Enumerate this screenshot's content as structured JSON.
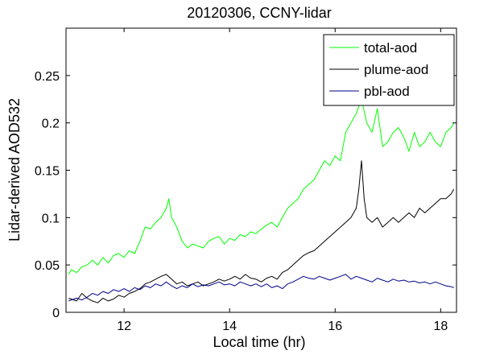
{
  "chart_data": {
    "type": "line",
    "title": "20120306, CCNY-lidar",
    "xlabel": "Local time (hr)",
    "ylabel": "Lidar-derived AOD532",
    "xlim": [
      10.9,
      18.3
    ],
    "ylim": [
      0,
      0.3
    ],
    "xticks": [
      12,
      14,
      16,
      18
    ],
    "xtick_labels": [
      "12",
      "14",
      "16",
      "18"
    ],
    "yticks": [
      0,
      0.05,
      0.1,
      0.15,
      0.2,
      0.25
    ],
    "ytick_labels": [
      "0",
      "0.05",
      "0.1",
      "0.15",
      "0.2",
      "0.25"
    ],
    "grid": false,
    "legend_position": "top-right",
    "series": [
      {
        "name": "total-aod",
        "color": "#00ff00",
        "x": [
          10.95,
          11.0,
          11.1,
          11.2,
          11.3,
          11.4,
          11.5,
          11.6,
          11.7,
          11.8,
          11.9,
          12.0,
          12.1,
          12.2,
          12.3,
          12.4,
          12.5,
          12.6,
          12.7,
          12.8,
          12.85,
          12.9,
          13.0,
          13.1,
          13.2,
          13.3,
          13.4,
          13.5,
          13.6,
          13.7,
          13.8,
          13.9,
          14.0,
          14.1,
          14.2,
          14.3,
          14.4,
          14.5,
          14.6,
          14.7,
          14.8,
          14.9,
          15.0,
          15.1,
          15.2,
          15.3,
          15.4,
          15.5,
          15.6,
          15.7,
          15.8,
          15.9,
          16.0,
          16.1,
          16.2,
          16.3,
          16.4,
          16.5,
          16.6,
          16.7,
          16.8,
          16.9,
          17.0,
          17.1,
          17.2,
          17.3,
          17.4,
          17.5,
          17.6,
          17.7,
          17.8,
          17.9,
          18.0,
          18.1,
          18.2,
          18.25
        ],
        "values": [
          0.04,
          0.045,
          0.042,
          0.048,
          0.05,
          0.055,
          0.05,
          0.058,
          0.052,
          0.06,
          0.062,
          0.058,
          0.065,
          0.062,
          0.075,
          0.09,
          0.088,
          0.095,
          0.1,
          0.11,
          0.12,
          0.1,
          0.09,
          0.075,
          0.068,
          0.072,
          0.07,
          0.068,
          0.075,
          0.078,
          0.08,
          0.072,
          0.078,
          0.076,
          0.082,
          0.08,
          0.085,
          0.083,
          0.088,
          0.092,
          0.095,
          0.09,
          0.1,
          0.11,
          0.115,
          0.12,
          0.13,
          0.135,
          0.14,
          0.15,
          0.16,
          0.155,
          0.165,
          0.16,
          0.19,
          0.2,
          0.21,
          0.225,
          0.2,
          0.19,
          0.215,
          0.175,
          0.18,
          0.19,
          0.195,
          0.185,
          0.17,
          0.19,
          0.175,
          0.18,
          0.19,
          0.18,
          0.175,
          0.19,
          0.195,
          0.2
        ]
      },
      {
        "name": "plume-aod",
        "color": "#000000",
        "x": [
          10.95,
          11.1,
          11.2,
          11.3,
          11.4,
          11.5,
          11.6,
          11.7,
          11.8,
          11.9,
          12.0,
          12.1,
          12.2,
          12.3,
          12.4,
          12.5,
          12.6,
          12.7,
          12.8,
          12.9,
          13.0,
          13.1,
          13.2,
          13.3,
          13.4,
          13.5,
          13.6,
          13.7,
          13.8,
          13.9,
          14.0,
          14.1,
          14.2,
          14.3,
          14.4,
          14.5,
          14.6,
          14.7,
          14.8,
          14.9,
          15.0,
          15.1,
          15.2,
          15.3,
          15.4,
          15.5,
          15.6,
          15.7,
          15.8,
          15.9,
          16.0,
          16.1,
          16.2,
          16.3,
          16.4,
          16.45,
          16.5,
          16.55,
          16.6,
          16.7,
          16.8,
          16.9,
          17.0,
          17.1,
          17.2,
          17.3,
          17.4,
          17.5,
          17.6,
          17.7,
          17.8,
          17.9,
          18.0,
          18.1,
          18.2,
          18.25
        ],
        "values": [
          0.015,
          0.012,
          0.02,
          0.015,
          0.012,
          0.01,
          0.015,
          0.012,
          0.014,
          0.018,
          0.016,
          0.02,
          0.022,
          0.025,
          0.03,
          0.032,
          0.035,
          0.038,
          0.04,
          0.035,
          0.03,
          0.032,
          0.028,
          0.03,
          0.032,
          0.028,
          0.03,
          0.032,
          0.035,
          0.033,
          0.035,
          0.038,
          0.035,
          0.04,
          0.036,
          0.035,
          0.032,
          0.036,
          0.038,
          0.035,
          0.042,
          0.045,
          0.05,
          0.055,
          0.06,
          0.063,
          0.065,
          0.07,
          0.075,
          0.08,
          0.085,
          0.09,
          0.095,
          0.1,
          0.11,
          0.13,
          0.16,
          0.12,
          0.1,
          0.095,
          0.1,
          0.09,
          0.095,
          0.1,
          0.095,
          0.1,
          0.105,
          0.1,
          0.11,
          0.105,
          0.11,
          0.115,
          0.12,
          0.12,
          0.125,
          0.13
        ]
      },
      {
        "name": "pbl-aod",
        "color": "#00008b",
        "x": [
          10.95,
          11.1,
          11.2,
          11.3,
          11.4,
          11.5,
          11.6,
          11.7,
          11.8,
          11.9,
          12.0,
          12.1,
          12.2,
          12.3,
          12.4,
          12.5,
          12.6,
          12.7,
          12.8,
          12.9,
          13.0,
          13.1,
          13.2,
          13.3,
          13.4,
          13.5,
          13.6,
          13.7,
          13.8,
          13.9,
          14.0,
          14.1,
          14.2,
          14.3,
          14.4,
          14.5,
          14.6,
          14.7,
          14.8,
          14.9,
          15.0,
          15.1,
          15.2,
          15.3,
          15.4,
          15.5,
          15.6,
          15.7,
          15.8,
          15.9,
          16.0,
          16.1,
          16.2,
          16.3,
          16.4,
          16.5,
          16.6,
          16.7,
          16.8,
          16.9,
          17.0,
          17.1,
          17.2,
          17.3,
          17.4,
          17.5,
          17.6,
          17.7,
          17.8,
          17.9,
          18.0,
          18.1,
          18.2,
          18.25
        ],
        "values": [
          0.012,
          0.015,
          0.013,
          0.016,
          0.02,
          0.018,
          0.022,
          0.02,
          0.024,
          0.022,
          0.025,
          0.022,
          0.026,
          0.024,
          0.028,
          0.026,
          0.03,
          0.028,
          0.032,
          0.028,
          0.025,
          0.028,
          0.026,
          0.03,
          0.027,
          0.029,
          0.028,
          0.03,
          0.032,
          0.029,
          0.03,
          0.028,
          0.032,
          0.03,
          0.028,
          0.03,
          0.027,
          0.03,
          0.026,
          0.028,
          0.025,
          0.03,
          0.032,
          0.035,
          0.038,
          0.036,
          0.035,
          0.038,
          0.036,
          0.034,
          0.036,
          0.038,
          0.04,
          0.035,
          0.038,
          0.036,
          0.034,
          0.032,
          0.036,
          0.034,
          0.032,
          0.035,
          0.033,
          0.034,
          0.032,
          0.033,
          0.031,
          0.032,
          0.03,
          0.032,
          0.03,
          0.028,
          0.027,
          0.026
        ]
      }
    ]
  }
}
